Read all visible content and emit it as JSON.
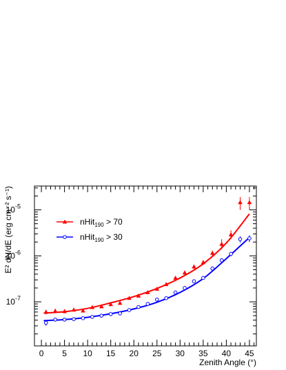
{
  "chart_data": {
    "type": "scatter",
    "xlabel": "Zenith Angle (°)",
    "ylabel": "E² dN/dE (erg cm⁻² s⁻¹)",
    "xlim": [
      -1.5,
      46.5
    ],
    "ylim": [
      1.1e-08,
      3.3e-05
    ],
    "y_scale": "log",
    "x_ticks": [
      0,
      5,
      10,
      15,
      20,
      25,
      30,
      35,
      40,
      45
    ],
    "y_ticks": [
      {
        "value": 1e-07,
        "label_base": "10",
        "label_exp": "-7"
      },
      {
        "value": 1e-06,
        "label_base": "10",
        "label_exp": "-6"
      },
      {
        "value": 1e-05,
        "label_base": "10",
        "label_exp": "-5"
      }
    ],
    "grid": false,
    "legend_position": "top-left",
    "series": [
      {
        "name": "nHit190 > 70",
        "legend_main": "nHit",
        "legend_sub": "190",
        "legend_rest": " > 70",
        "color": "#ff0000",
        "marker": "filled-triangle",
        "x": [
          1,
          3,
          5,
          7,
          9,
          11,
          13,
          15,
          17,
          19,
          21,
          23,
          25,
          27,
          29,
          31,
          33,
          35,
          37,
          39,
          41,
          43,
          45
        ],
        "y": [
          6e-08,
          6.3e-08,
          6.2e-08,
          6.7e-08,
          6.4e-08,
          7.6e-08,
          7.9e-08,
          8.8e-08,
          9.4e-08,
          1.2e-07,
          1.35e-07,
          1.6e-07,
          1.9e-07,
          2.4e-07,
          3.3e-07,
          4.3e-07,
          5.8e-07,
          7.2e-07,
          1.15e-06,
          1.8e-06,
          2.9e-06,
          1.45e-05,
          1.45e-05
        ],
        "y_err_low": [
          5.3e-08,
          5.6e-08,
          5.6e-08,
          6.1e-08,
          6e-08,
          7.1e-08,
          7.4e-08,
          8.3e-08,
          8.8e-08,
          1.13e-07,
          1.27e-07,
          1.5e-07,
          1.77e-07,
          2.2e-07,
          3e-07,
          3.9e-07,
          5.2e-07,
          6.3e-07,
          1e-06,
          1.4e-06,
          2.3e-06,
          1e-05,
          1e-05
        ],
        "y_err_high": [
          6.7e-08,
          7.1e-08,
          6.9e-08,
          7.4e-08,
          6.9e-08,
          8.1e-08,
          8.4e-08,
          9.3e-08,
          1e-07,
          1.27e-07,
          1.43e-07,
          1.7e-07,
          2.03e-07,
          2.6e-07,
          3.6e-07,
          4.7e-07,
          6.4e-07,
          8.1e-07,
          1.3e-06,
          2.3e-06,
          3.6e-06,
          1.9e-05,
          1.9e-05
        ],
        "fit": {
          "x": [
            0.5,
            5,
            10,
            15,
            20,
            25,
            30,
            35,
            40,
            45
          ],
          "y": [
            5.7e-08,
            6.1e-08,
            7.2e-08,
            9.5e-08,
            1.3e-07,
            1.95e-07,
            3.3e-07,
            6.7e-07,
            1.9e-06,
            8.2e-06
          ]
        }
      },
      {
        "name": "nHit190 > 30",
        "legend_main": "nHit",
        "legend_sub": "190",
        "legend_rest": " > 30",
        "color": "#0000ff",
        "marker": "open-circle",
        "x": [
          1,
          3,
          5,
          7,
          9,
          11,
          13,
          15,
          17,
          19,
          21,
          23,
          25,
          27,
          29,
          31,
          33,
          35,
          37,
          39,
          41,
          43,
          45
        ],
        "y": [
          3.5e-08,
          4.1e-08,
          4.1e-08,
          4.2e-08,
          4.4e-08,
          4.7e-08,
          5e-08,
          5.4e-08,
          5.6e-08,
          6.6e-08,
          7.7e-08,
          9e-08,
          1.12e-07,
          1.2e-07,
          1.6e-07,
          2e-07,
          2.8e-07,
          3.3e-07,
          5.3e-07,
          8e-07,
          1.1e-06,
          2.3e-06,
          2.4e-06
        ],
        "y_err_low": [
          3e-08,
          3.8e-08,
          3.9e-08,
          4e-08,
          4.2e-08,
          4.5e-08,
          4.8e-08,
          5.2e-08,
          5.4e-08,
          6.3e-08,
          7.4e-08,
          8.6e-08,
          1.07e-07,
          1.15e-07,
          1.53e-07,
          1.9e-07,
          2.65e-07,
          3.1e-07,
          4.9e-07,
          7.3e-07,
          9.8e-07,
          1.95e-06,
          2e-06
        ],
        "y_err_high": [
          4e-08,
          4.4e-08,
          4.3e-08,
          4.4e-08,
          4.6e-08,
          4.9e-08,
          5.2e-08,
          5.6e-08,
          5.8e-08,
          6.9e-08,
          8e-08,
          9.4e-08,
          1.17e-07,
          1.25e-07,
          1.67e-07,
          2.1e-07,
          2.95e-07,
          3.5e-07,
          5.7e-07,
          8.7e-07,
          1.22e-06,
          2.65e-06,
          2.8e-06
        ],
        "fit": {
          "x": [
            0.5,
            5,
            10,
            15,
            20,
            25,
            30,
            35,
            40,
            45
          ],
          "y": [
            3.9e-08,
            4.1e-08,
            4.6e-08,
            5.5e-08,
            7e-08,
            9.8e-08,
            1.6e-07,
            3.2e-07,
            8.7e-07,
            2.5e-06
          ]
        }
      }
    ]
  }
}
